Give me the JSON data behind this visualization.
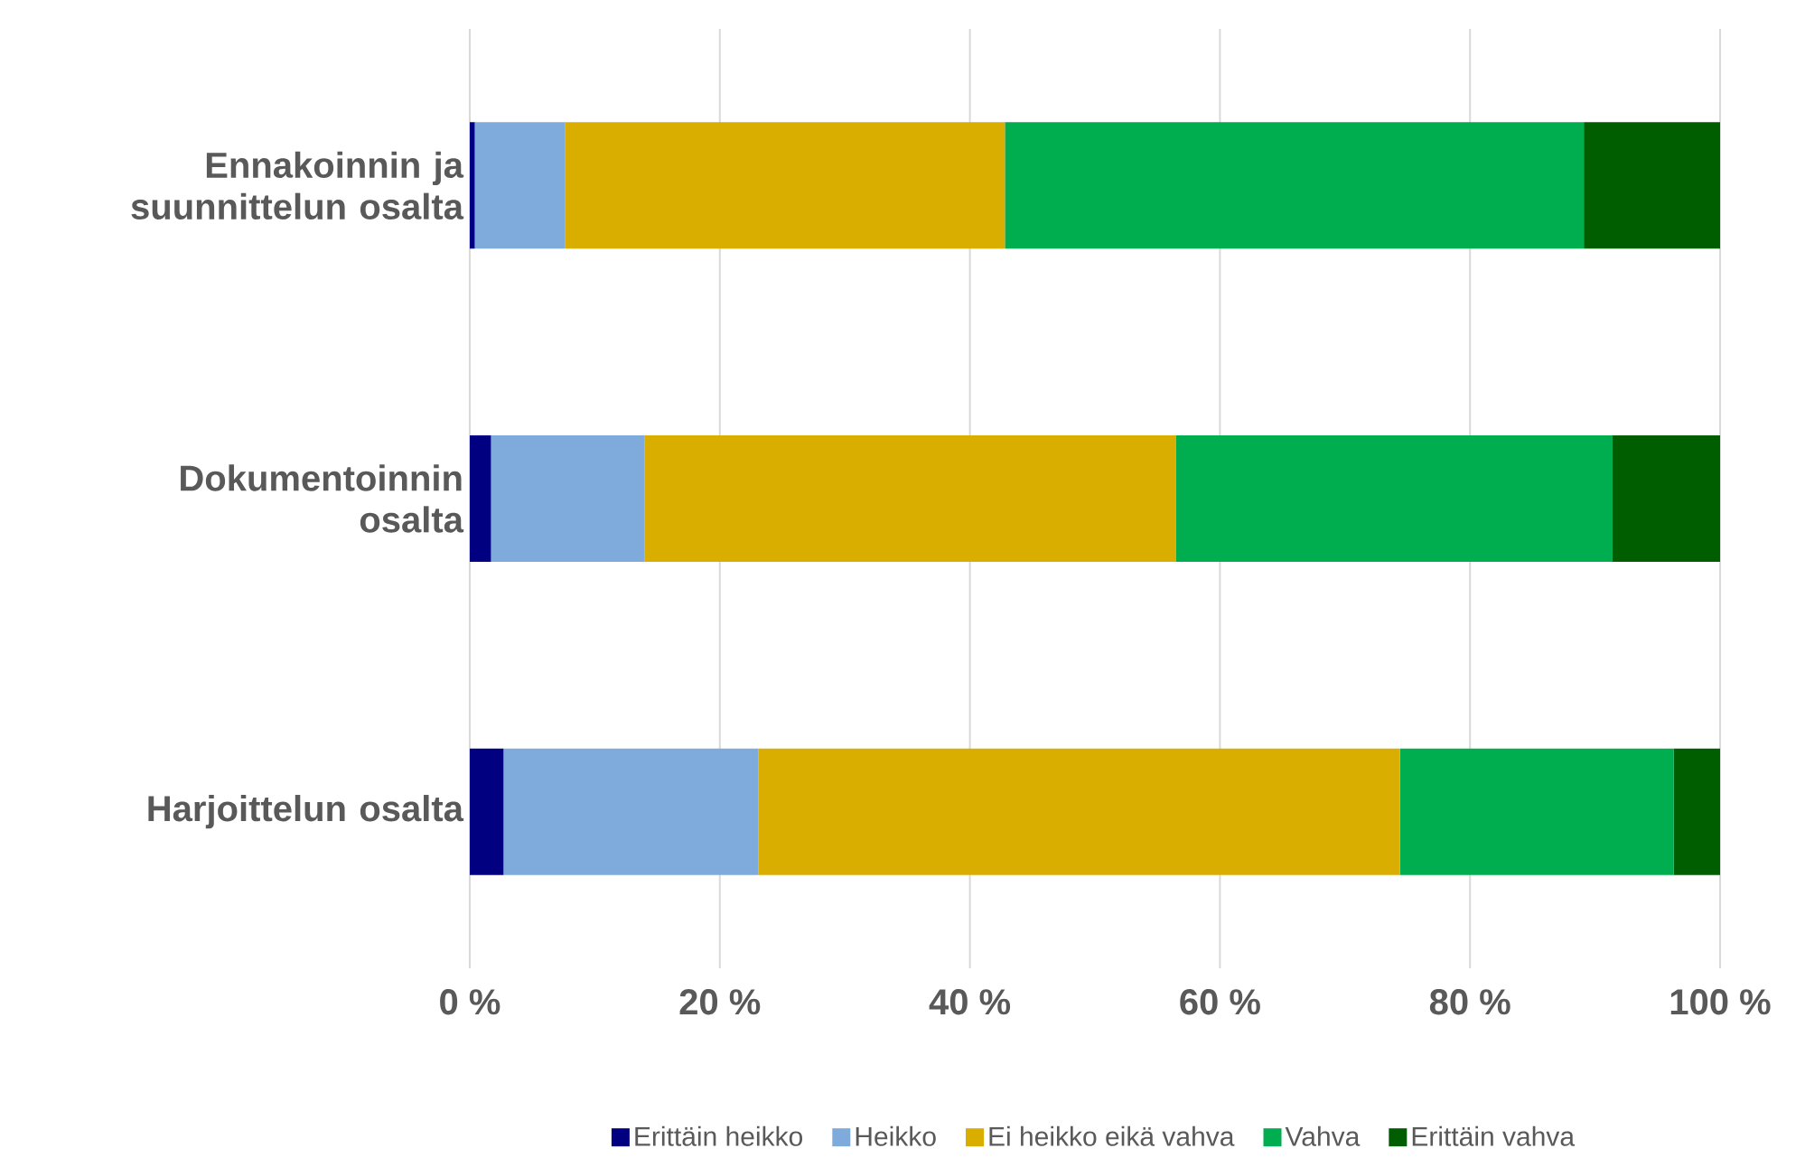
{
  "chart_data": {
    "type": "bar",
    "orientation": "horizontal",
    "stacked": true,
    "grid": "x",
    "legend": "bottom",
    "categories": [
      "Ennakoinnin ja suunnittelun osalta",
      "Dokumentoinnin osalta",
      "Harjoittelun osalta"
    ],
    "xlim": [
      0,
      100
    ],
    "xticks": [
      {
        "value": 0,
        "label": "0 %"
      },
      {
        "value": 20,
        "label": "20 %"
      },
      {
        "value": 40,
        "label": "40 %"
      },
      {
        "value": 60,
        "label": "60 %"
      },
      {
        "value": 80,
        "label": "80 %"
      },
      {
        "value": 100,
        "label": "100 %"
      }
    ],
    "series": [
      {
        "name": "Erittäin heikko",
        "color": "#000080",
        "values": [
          0.4,
          1.7,
          2.7
        ]
      },
      {
        "name": "Heikko",
        "color": "#7faadc",
        "values": [
          7.2,
          12.3,
          20.4
        ]
      },
      {
        "name": "Ei heikko eikä vahva",
        "color": "#d9ae00",
        "values": [
          35.2,
          42.5,
          51.3
        ]
      },
      {
        "name": "Vahva",
        "color": "#00ae4f",
        "values": [
          46.3,
          34.9,
          21.9
        ]
      },
      {
        "name": "Erittäin vahva",
        "color": "#005e00",
        "values": [
          10.9,
          8.6,
          3.7
        ]
      }
    ]
  }
}
